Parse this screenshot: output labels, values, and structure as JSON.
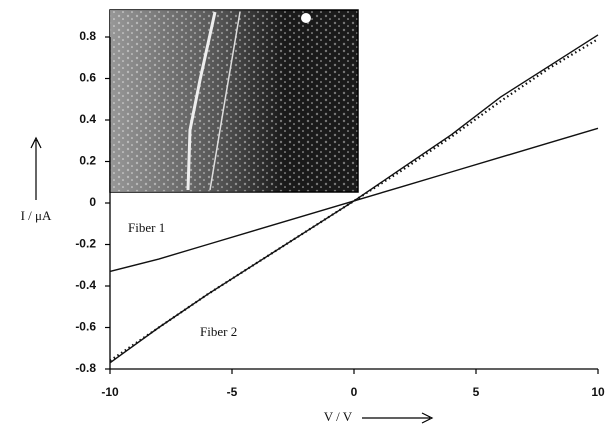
{
  "chart_data": {
    "type": "line",
    "x": [
      -10,
      -8,
      -6,
      -4,
      -2,
      0,
      2,
      4,
      6,
      8,
      10
    ],
    "series": [
      {
        "name": "Fiber 1",
        "color": "#111111",
        "style": "solid",
        "values": [
          -0.33,
          -0.27,
          -0.2,
          -0.13,
          -0.06,
          0.01,
          0.08,
          0.15,
          0.22,
          0.29,
          0.36
        ]
      },
      {
        "name": "Fiber 2",
        "color": "#111111",
        "style": "solid",
        "values": [
          -0.77,
          -0.6,
          -0.44,
          -0.29,
          -0.14,
          0.01,
          0.17,
          0.33,
          0.51,
          0.66,
          0.81
        ]
      },
      {
        "color": "#111111",
        "style": "dotted",
        "values": [
          -0.76,
          -0.6,
          -0.44,
          -0.29,
          -0.14,
          0.01,
          0.16,
          0.32,
          0.49,
          0.65,
          0.79
        ]
      }
    ],
    "xlabel": "V / V",
    "ylabel": "I / μA",
    "xlim": [
      -10,
      10
    ],
    "ylim": [
      -0.8,
      0.8
    ],
    "xticks": [
      -10,
      -5,
      0,
      5,
      10
    ],
    "yticks": [
      0.8,
      0.6,
      0.4,
      0.2,
      0,
      -0.2,
      -0.4,
      -0.6,
      -0.8
    ]
  }
}
